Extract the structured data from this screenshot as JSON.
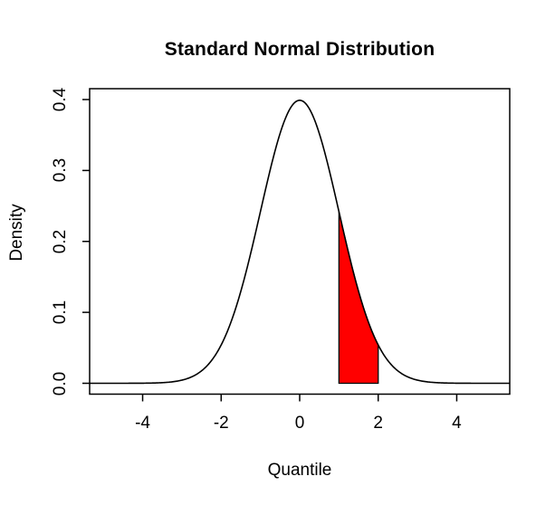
{
  "chart_data": {
    "type": "line",
    "title": "Standard Normal Distribution",
    "xlabel": "Quantile",
    "ylabel": "Density",
    "x_ticks": [
      -4,
      -2,
      0,
      2,
      4
    ],
    "x_tick_labels": [
      "-4",
      "-2",
      "0",
      "2",
      "4"
    ],
    "y_ticks": [
      0,
      0.1,
      0.2,
      0.3,
      0.4
    ],
    "y_tick_labels": [
      "0.0",
      "0.1",
      "0.2",
      "0.3",
      "0.4"
    ],
    "xlim": [
      -5.35,
      5.35
    ],
    "ylim": [
      -0.0153,
      0.4153
    ],
    "grid": false,
    "legend": false,
    "background_color": "#FFFFFF",
    "axis_color": "#000000",
    "curve": {
      "distribution": "normal",
      "mean": 0,
      "sd": 1,
      "draw_range": [
        -5.35,
        5.35
      ],
      "color": "#000000",
      "key_points": {
        "x": [
          -4,
          -3,
          -2,
          -1,
          0,
          1,
          2,
          3,
          4
        ],
        "density": [
          0.0001,
          0.0044,
          0.054,
          0.242,
          0.3989,
          0.242,
          0.054,
          0.0044,
          0.0001
        ]
      }
    },
    "shaded_region": {
      "from": 1,
      "to": 2,
      "fill_color": "#FF0000",
      "border_color": "#000000"
    }
  }
}
